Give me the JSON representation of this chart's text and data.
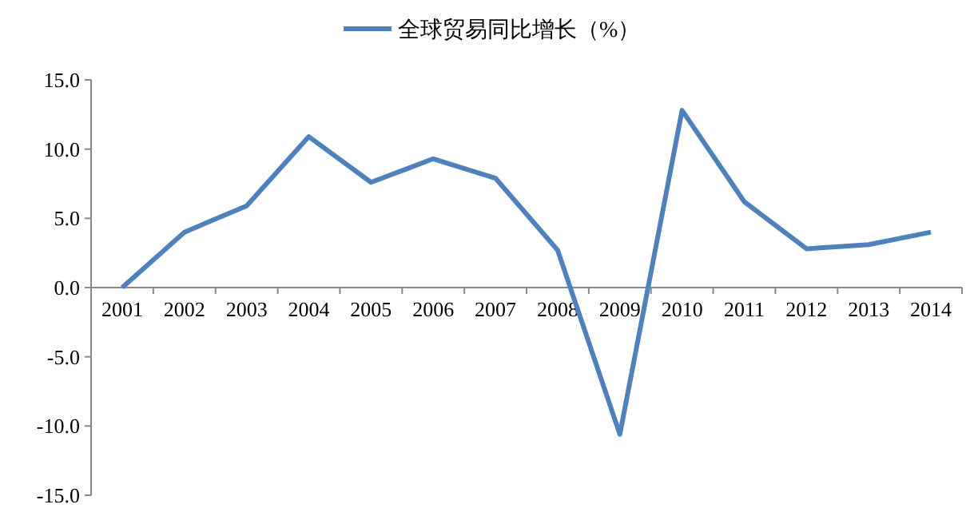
{
  "chart_data": {
    "type": "line",
    "categories": [
      "2001",
      "2002",
      "2003",
      "2004",
      "2005",
      "2006",
      "2007",
      "2008",
      "2009",
      "2010",
      "2011",
      "2012",
      "2013",
      "2014"
    ],
    "series": [
      {
        "name": "全球贸易同比增长（%）",
        "color": "#4f81bd",
        "values": [
          0.0,
          4.0,
          5.9,
          10.9,
          7.6,
          9.3,
          7.9,
          2.7,
          -10.6,
          12.8,
          6.2,
          2.8,
          3.1,
          4.0
        ]
      }
    ],
    "ylim": [
      -15,
      15
    ],
    "yticks": [
      {
        "value": -15,
        "label": "-15.0"
      },
      {
        "value": -10,
        "label": "-10.0"
      },
      {
        "value": -5,
        "label": "-5.0"
      },
      {
        "value": 0,
        "label": "0.0"
      },
      {
        "value": 5,
        "label": "5.0"
      },
      {
        "value": 10,
        "label": "10.0"
      },
      {
        "value": 15,
        "label": "15.0"
      }
    ],
    "grid": false,
    "legend": "top",
    "marker": "none",
    "line_style": "solid"
  }
}
